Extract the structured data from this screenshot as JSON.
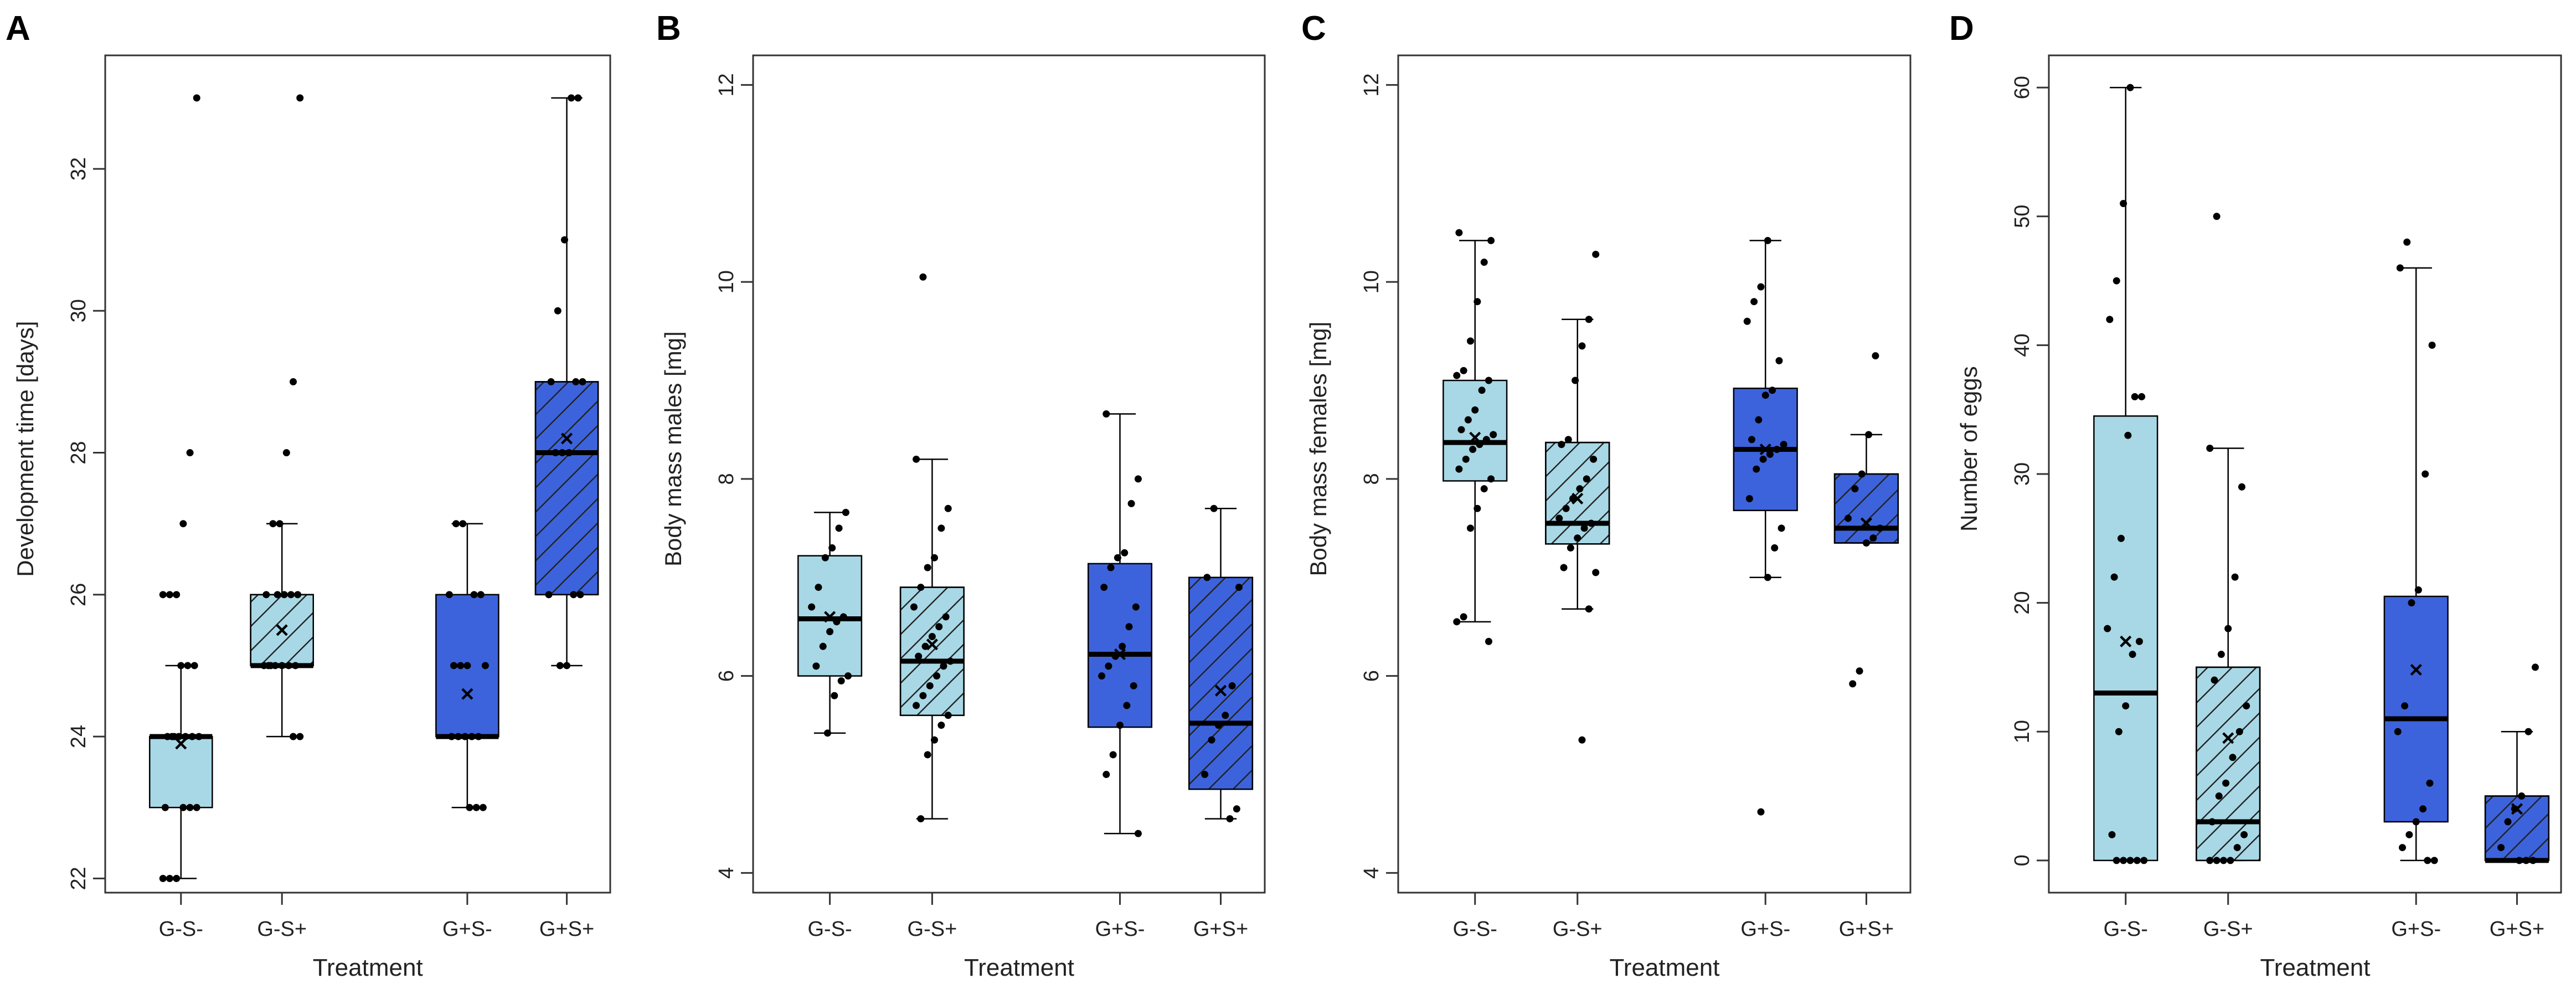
{
  "figure": {
    "description_none": ""
  },
  "colors": {
    "light_blue": "#a8d8e6",
    "royal_blue": "#3d63dc",
    "axis": "#333333",
    "point": "#000000"
  },
  "chart_data": [
    {
      "type": "box",
      "panel_label": "A",
      "title": "",
      "xlabel": "Treatment",
      "ylabel": "Development time [days]",
      "ylim": [
        21.8,
        33.6
      ],
      "yticks": [
        22,
        24,
        26,
        28,
        30,
        32
      ],
      "categories": [
        "G-S-",
        "G-S+",
        "G+S-",
        "G+S+"
      ],
      "groups": [
        {
          "name": "G-S-",
          "fill": "light_blue",
          "hatched": false,
          "whisker_low": 22,
          "q1": 23,
          "median": 24,
          "q3": 24,
          "whisker_high": 25,
          "mean": 23.9,
          "points": [
            22,
            22,
            22,
            23,
            23,
            23,
            23,
            24,
            24,
            24,
            24,
            24,
            24,
            24,
            25,
            25,
            25,
            26,
            26,
            26,
            27,
            28,
            33
          ]
        },
        {
          "name": "G-S+",
          "fill": "light_blue",
          "hatched": true,
          "whisker_low": 24,
          "q1": 25,
          "median": 25,
          "q3": 26,
          "whisker_high": 27,
          "mean": 25.5,
          "points": [
            24,
            24,
            25,
            25,
            25,
            25,
            25,
            25,
            25,
            26,
            26,
            26,
            26,
            26,
            27,
            27,
            28,
            29,
            33
          ]
        },
        {
          "name": "G+S-",
          "fill": "royal_blue",
          "hatched": false,
          "whisker_low": 23,
          "q1": 24,
          "median": 24,
          "q3": 26,
          "whisker_high": 27,
          "mean": 24.6,
          "points": [
            23,
            23,
            23,
            24,
            24,
            24,
            24,
            24,
            25,
            25,
            25,
            25,
            26,
            26,
            26,
            27,
            27
          ]
        },
        {
          "name": "G+S+",
          "fill": "royal_blue",
          "hatched": true,
          "whisker_low": 25,
          "q1": 26,
          "median": 28,
          "q3": 29,
          "whisker_high": 33,
          "mean": 28.2,
          "points": [
            25,
            25,
            26,
            26,
            26,
            28,
            28,
            28,
            29,
            29,
            29,
            30,
            31,
            33,
            33
          ]
        }
      ]
    },
    {
      "type": "box",
      "panel_label": "B",
      "title": "",
      "xlabel": "Treatment",
      "ylabel": "Body mass males [mg]",
      "ylim": [
        3.8,
        12.3
      ],
      "yticks": [
        4,
        6,
        8,
        10,
        12
      ],
      "categories": [
        "G-S-",
        "G-S+",
        "G+S-",
        "G+S+"
      ],
      "groups": [
        {
          "name": "G-S-",
          "fill": "light_blue",
          "hatched": false,
          "whisker_low": 5.42,
          "q1": 6.0,
          "median": 6.58,
          "q3": 7.22,
          "whisker_high": 7.66,
          "mean": 6.6,
          "points": [
            5.42,
            5.8,
            5.95,
            6.0,
            6.1,
            6.3,
            6.45,
            6.55,
            6.6,
            6.7,
            6.9,
            7.2,
            7.3,
            7.5,
            7.66
          ]
        },
        {
          "name": "G-S+",
          "fill": "light_blue",
          "hatched": true,
          "whisker_low": 4.55,
          "q1": 5.6,
          "median": 6.15,
          "q3": 6.9,
          "whisker_high": 8.2,
          "mean": 6.32,
          "points": [
            4.55,
            5.2,
            5.35,
            5.5,
            5.6,
            5.7,
            5.8,
            5.9,
            6.0,
            6.1,
            6.15,
            6.2,
            6.3,
            6.4,
            6.5,
            6.6,
            6.7,
            6.9,
            7.1,
            7.2,
            7.5,
            7.7,
            8.2,
            10.05
          ]
        },
        {
          "name": "G+S-",
          "fill": "royal_blue",
          "hatched": false,
          "whisker_low": 4.4,
          "q1": 5.48,
          "median": 6.22,
          "q3": 7.14,
          "whisker_high": 8.66,
          "mean": 6.22,
          "points": [
            4.4,
            5.0,
            5.2,
            5.5,
            5.7,
            5.9,
            6.0,
            6.1,
            6.2,
            6.3,
            6.5,
            6.7,
            6.9,
            7.1,
            7.2,
            7.25,
            7.75,
            8.0,
            8.66
          ]
        },
        {
          "name": "G+S+",
          "fill": "royal_blue",
          "hatched": true,
          "whisker_low": 4.55,
          "q1": 4.85,
          "median": 5.52,
          "q3": 7.0,
          "whisker_high": 7.7,
          "mean": 5.85,
          "points": [
            4.55,
            4.65,
            5.0,
            5.35,
            5.5,
            5.6,
            5.9,
            6.9,
            7.0,
            7.7
          ]
        }
      ]
    },
    {
      "type": "box",
      "panel_label": "C",
      "title": "",
      "xlabel": "Treatment",
      "ylabel": "Body mass females [mg]",
      "ylim": [
        3.8,
        12.3
      ],
      "yticks": [
        4,
        6,
        8,
        10,
        12
      ],
      "categories": [
        "G-S-",
        "G-S+",
        "G+S-",
        "G+S+"
      ],
      "groups": [
        {
          "name": "G-S-",
          "fill": "light_blue",
          "hatched": false,
          "whisker_low": 6.55,
          "q1": 7.98,
          "median": 8.37,
          "q3": 9.0,
          "whisker_high": 10.42,
          "mean": 8.42,
          "points": [
            6.35,
            6.55,
            6.6,
            7.5,
            7.7,
            7.9,
            8.0,
            8.1,
            8.2,
            8.3,
            8.35,
            8.4,
            8.45,
            8.5,
            8.6,
            8.7,
            8.9,
            9.0,
            9.05,
            9.1,
            9.4,
            9.8,
            10.2,
            10.42,
            10.5
          ]
        },
        {
          "name": "G-S+",
          "fill": "light_blue",
          "hatched": true,
          "whisker_low": 6.68,
          "q1": 7.34,
          "median": 7.55,
          "q3": 8.37,
          "whisker_high": 9.62,
          "mean": 7.8,
          "points": [
            5.35,
            6.68,
            7.05,
            7.1,
            7.3,
            7.4,
            7.5,
            7.55,
            7.6,
            7.7,
            7.8,
            7.9,
            8.0,
            8.2,
            8.35,
            8.4,
            9.0,
            9.35,
            9.62,
            10.28
          ]
        },
        {
          "name": "G+S-",
          "fill": "royal_blue",
          "hatched": false,
          "whisker_low": 7.0,
          "q1": 7.68,
          "median": 8.3,
          "q3": 8.92,
          "whisker_high": 10.42,
          "mean": 8.3,
          "points": [
            4.62,
            7.0,
            7.3,
            7.5,
            7.8,
            8.1,
            8.2,
            8.25,
            8.3,
            8.35,
            8.4,
            8.6,
            8.85,
            8.9,
            9.2,
            9.6,
            9.8,
            9.95,
            10.42
          ]
        },
        {
          "name": "G+S+",
          "fill": "royal_blue",
          "hatched": true,
          "whisker_low": 7.35,
          "q1": 7.35,
          "median": 7.5,
          "q3": 8.05,
          "whisker_high": 8.45,
          "mean": 7.55,
          "points": [
            5.92,
            6.05,
            7.35,
            7.4,
            7.5,
            7.6,
            7.9,
            8.05,
            8.45,
            9.25
          ]
        }
      ]
    },
    {
      "type": "box",
      "panel_label": "D",
      "title": "",
      "xlabel": "Treatment",
      "ylabel": "Number of eggs",
      "ylim": [
        -2.5,
        62.5
      ],
      "yticks": [
        0,
        10,
        20,
        30,
        40,
        50,
        60
      ],
      "categories": [
        "G-S-",
        "G-S+",
        "G+S-",
        "G+S+"
      ],
      "groups": [
        {
          "name": "G-S-",
          "fill": "light_blue",
          "hatched": false,
          "whisker_low": 0,
          "q1": 0,
          "median": 13,
          "q3": 34.5,
          "whisker_high": 60,
          "mean": 17.0,
          "points": [
            0,
            0,
            0,
            0,
            0,
            2,
            10,
            12,
            16,
            17,
            18,
            22,
            25,
            33,
            36,
            36,
            42,
            45,
            51,
            60
          ]
        },
        {
          "name": "G-S+",
          "fill": "light_blue",
          "hatched": true,
          "whisker_low": 0,
          "q1": 0,
          "median": 3,
          "q3": 15,
          "whisker_high": 32,
          "mean": 9.5,
          "points": [
            0,
            0,
            0,
            0,
            1,
            2,
            3,
            5,
            6,
            8,
            10,
            12,
            14,
            16,
            18,
            22,
            29,
            32,
            50
          ]
        },
        {
          "name": "G+S-",
          "fill": "royal_blue",
          "hatched": false,
          "whisker_low": 0,
          "q1": 3,
          "median": 11,
          "q3": 20.5,
          "whisker_high": 46,
          "mean": 14.8,
          "points": [
            0,
            0,
            1,
            2,
            3,
            4,
            6,
            10,
            12,
            20,
            21,
            30,
            40,
            46,
            48
          ]
        },
        {
          "name": "G+S+",
          "fill": "royal_blue",
          "hatched": true,
          "whisker_low": 0,
          "q1": 0,
          "median": 0,
          "q3": 5,
          "whisker_high": 10,
          "mean": 4.0,
          "points": [
            0,
            0,
            0,
            1,
            3,
            4,
            5,
            10,
            15
          ]
        }
      ]
    }
  ]
}
